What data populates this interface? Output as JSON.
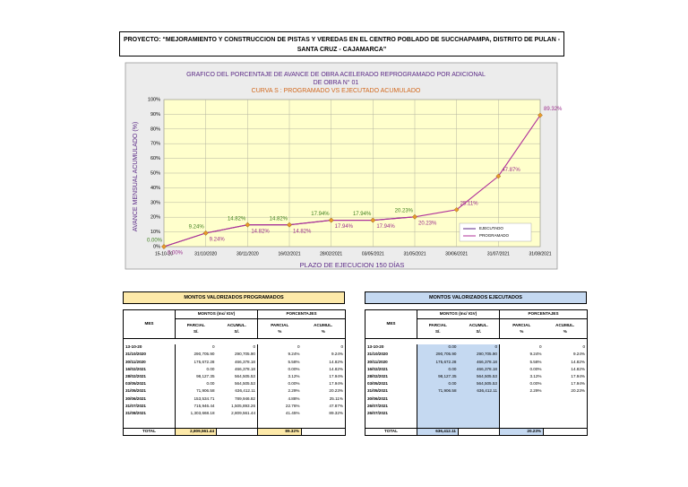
{
  "header": {
    "title_lines": [
      "PROYECTO:  “MEJORAMIENTO Y CONSTRUCCION DE PISTAS Y VEREDAS EN EL CENTRO POBLADO DE SUCCHAPAMPA, DISTRITO DE PULAN -",
      "SANTA CRUZ - CAJAMARCA”"
    ]
  },
  "chart_data": {
    "type": "line",
    "title_lines": [
      "GRAFICO DEL PORCENTAJE DE AVANCE  DE OBRA ACELERADO REPROGRAMADO POR ADICIONAL",
      "DE OBRA N° 01"
    ],
    "subtitle": "CURVA S : PROGRAMADO VS EJECUTADO ACUMULADO",
    "y_label": "AVANCE MENSUAL ACUMULADO (%)",
    "x_label": "PLAZO DE EJECUCION  150 DÍAS",
    "categories": [
      "15-10-20",
      "31/10/2020",
      "30/11/2020",
      "16/02/2021",
      "28/02/2021",
      "03/05/2021",
      "31/05/2021",
      "30/06/2021",
      "31/07/2021",
      "31/08/2021"
    ],
    "ylim": [
      0,
      100
    ],
    "yticks": [
      {
        "value": 0,
        "label": "0%"
      },
      {
        "value": 10,
        "label": "10%"
      },
      {
        "value": 20,
        "label": "20%"
      },
      {
        "value": 30,
        "label": "30%"
      },
      {
        "value": 40,
        "label": "40%"
      },
      {
        "value": 50,
        "label": "50%"
      },
      {
        "value": 60,
        "label": "60%"
      },
      {
        "value": 70,
        "label": "70%"
      },
      {
        "value": 80,
        "label": "80%"
      },
      {
        "value": 90,
        "label": "90%"
      },
      {
        "value": 100,
        "label": "100%"
      }
    ],
    "grid": true,
    "legend": "lower right",
    "marker_color": "#e89a2c",
    "series": [
      {
        "name": "EJECUTADO",
        "color": "#5b2a86",
        "label_color": "#3f7f1f",
        "values": [
          0,
          9.24,
          14.82,
          14.82,
          17.94,
          17.94,
          20.23,
          null,
          null,
          null
        ],
        "value_labels": [
          "0.00%",
          "9.24%",
          "14.82%",
          "14.82%",
          "17.94%",
          "17.94%",
          "20.23%",
          null,
          null,
          null
        ]
      },
      {
        "name": "PROGRAMADO",
        "color": "#b0309a",
        "label_color": "#9b2d8c",
        "values": [
          0,
          9.24,
          14.82,
          14.82,
          17.94,
          17.94,
          20.23,
          25.11,
          47.87,
          89.32
        ],
        "value_labels": [
          "0.00%",
          "9.24%",
          "14.82%",
          "14.82%",
          "17.94%",
          "17.94%",
          "20.23%",
          "25.11%",
          "47.87%",
          "89.32%"
        ]
      }
    ]
  },
  "tables": [
    {
      "title": "MONTOS VALORIZADOS PROGRAMADOS",
      "color": "#fde9a9",
      "mes": "MES",
      "montos": "MONTOS (Inc/ IGV)",
      "porcentajes": "PORCENTAJES",
      "columns": [
        [
          "PARCIAL",
          "S/."
        ],
        [
          "ACUMUL.",
          "S/."
        ],
        [
          "PARCIAL",
          "%"
        ],
        [
          "ACUMUL.",
          "%"
        ]
      ],
      "rows": [
        [
          "13-10-20",
          "0",
          "0",
          "0",
          "0"
        ],
        [
          "31/10/2020",
          "290,705.90",
          "290,705.90",
          "9.24%",
          "9.24%"
        ],
        [
          "30/11/2020",
          "175,672.28",
          "466,378.18",
          "5.58%",
          "14.82%"
        ],
        [
          "16/02/2021",
          "0.00",
          "466,378.18",
          "0.00%",
          "14.82%"
        ],
        [
          "28/02/2021",
          "98,127.35",
          "564,505.53",
          "3.12%",
          "17.94%"
        ],
        [
          "03/05/2021",
          "0.00",
          "564,505.53",
          "0.00%",
          "17.94%"
        ],
        [
          "31/05/2021",
          "71,906.58",
          "636,412.11",
          "2.29%",
          "20.23%"
        ],
        [
          "30/06/2021",
          "153,534.71",
          "789,946.82",
          "4.88%",
          "25.11%"
        ],
        [
          "31/07/2021",
          "715,946.44",
          "1,505,893.26",
          "22.76%",
          "47.87%"
        ],
        [
          "31/08/2021",
          "1,303,668.18",
          "2,809,561.44",
          "41.45%",
          "89.32%"
        ]
      ],
      "total": [
        "TOTAL",
        "2,809,561.44",
        null,
        "89.32%",
        null
      ]
    },
    {
      "title": "MONTOS VALORIZADOS EJECUTADOS",
      "color": "#c5d9f1",
      "mes": "MES",
      "montos": "MONTOS (Inc/ IGV)",
      "porcentajes": "PORCENTAJES",
      "columns": [
        [
          "PARCIAL",
          "S/."
        ],
        [
          "ACUMUL.",
          "S/."
        ],
        [
          "PARCIAL",
          "%"
        ],
        [
          "ACUMUL.",
          "%"
        ]
      ],
      "rows": [
        [
          "13-10-20",
          "0.00",
          "0",
          "0",
          "0"
        ],
        [
          "31/10/2020",
          "290,705.90",
          "290,705.90",
          "9.24%",
          "9.24%"
        ],
        [
          "30/11/2020",
          "175,672.28",
          "466,378.18",
          "5.58%",
          "14.82%"
        ],
        [
          "16/02/2021",
          "0.00",
          "466,378.18",
          "0.00%",
          "14.82%"
        ],
        [
          "28/02/2021",
          "98,127.35",
          "564,505.53",
          "3.12%",
          "17.94%"
        ],
        [
          "03/05/2021",
          "0.00",
          "564,505.53",
          "0.00%",
          "17.94%"
        ],
        [
          "31/05/2021",
          "71,906.58",
          "636,412.11",
          "2.29%",
          "20.23%"
        ],
        [
          "30/06/2021",
          null,
          null,
          null,
          null
        ],
        [
          "26/07/2021",
          null,
          null,
          null,
          null
        ],
        [
          "26/07/2021",
          null,
          null,
          null,
          null
        ]
      ],
      "total": [
        "TOTAL",
        "636,412.11",
        null,
        "20.23%",
        null
      ]
    }
  ]
}
